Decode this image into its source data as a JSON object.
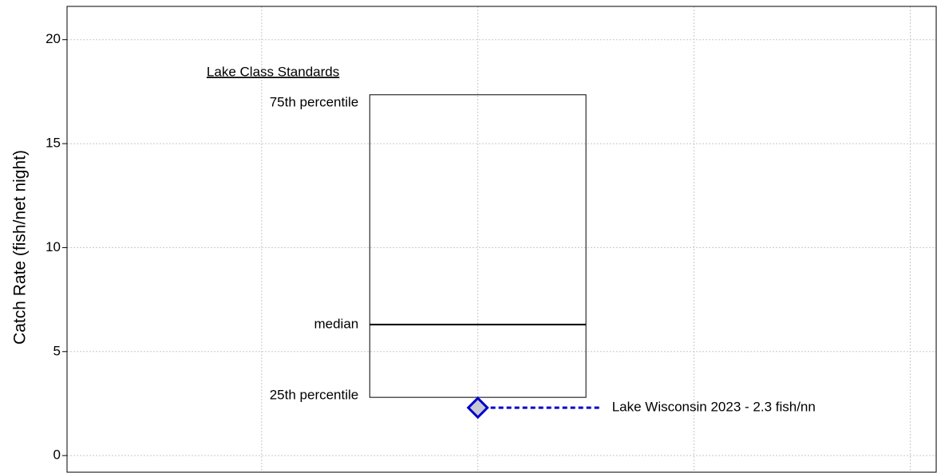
{
  "chart_data": {
    "type": "box",
    "ylabel": "Catch Rate (fish/net night)",
    "annotation": "Lake Class Standards",
    "ylim": [
      -0.8,
      21.6
    ],
    "yticks": [
      0,
      5,
      10,
      15,
      20
    ],
    "xlim": [
      0.05,
      2.06
    ],
    "xticks": [
      0.5,
      1,
      1.5,
      2
    ],
    "grid": true,
    "box": {
      "x": 1,
      "width": 0.5,
      "q1": 2.8,
      "median": 6.3,
      "q3": 17.35,
      "q1_label": "25th percentile",
      "median_label": "median",
      "q3_label": "75th percentile"
    },
    "point": {
      "name": "Lake Wisconsin 2023 - 2.3 fish/nn",
      "x": 1,
      "value": 2.3,
      "color": "#0000cc",
      "fill": "#c8c8d4"
    }
  }
}
